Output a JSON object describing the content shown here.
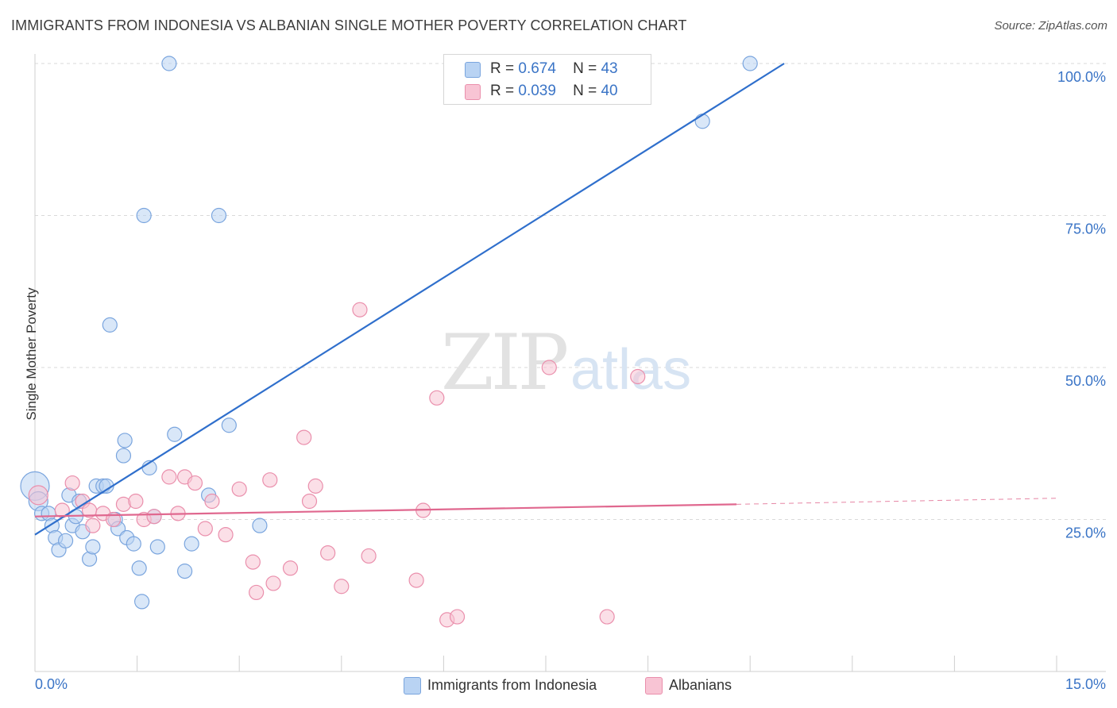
{
  "title": "IMMIGRANTS FROM INDONESIA VS ALBANIAN SINGLE MOTHER POVERTY CORRELATION CHART",
  "source": "Source: ZipAtlas.com",
  "watermark": {
    "zip": "ZIP",
    "atlas": "atlas"
  },
  "legend": {
    "rows": [
      {
        "r_label": "R =",
        "r_value": "0.674",
        "n_label": "N =",
        "n_value": "43"
      },
      {
        "r_label": "R =",
        "r_value": "0.039",
        "n_label": "N =",
        "n_value": "40"
      }
    ]
  },
  "bottom_legend": [
    "Immigrants from Indonesia",
    "Albanians"
  ],
  "colors": {
    "blue_fill": "#b9d3f3",
    "blue_stroke": "#7aa5de",
    "blue_line": "#2f6fcc",
    "pink_fill": "#f8c4d4",
    "pink_stroke": "#ea8fac",
    "pink_line": "#e0688f",
    "grid": "#d9d9d9",
    "tick_label": "#3a74c6"
  },
  "chart_data": {
    "type": "scatter",
    "title": "IMMIGRANTS FROM INDONESIA VS ALBANIAN SINGLE MOTHER POVERTY CORRELATION CHART",
    "xlabel": "",
    "ylabel": "Single Mother Poverty",
    "xlim": [
      0,
      15
    ],
    "ylim": [
      0,
      102
    ],
    "x_tick_labels": [
      "0.0%",
      "15.0%"
    ],
    "y_ticks": [
      25,
      50,
      75,
      100
    ],
    "y_tick_labels": [
      "25.0%",
      "50.0%",
      "75.0%",
      "100.0%"
    ],
    "series": [
      {
        "name": "Immigrants from Indonesia",
        "r": 0.674,
        "n": 43,
        "trend": {
          "x": [
            0,
            11.0
          ],
          "y": [
            22.5,
            100.0
          ]
        },
        "points": [
          [
            0.0,
            30.5,
            18
          ],
          [
            0.05,
            28.0,
            12
          ],
          [
            0.1,
            26.0,
            9
          ],
          [
            0.2,
            26.0,
            9
          ],
          [
            0.25,
            24.0,
            9
          ],
          [
            0.3,
            22.0,
            9
          ],
          [
            0.35,
            20.0,
            9
          ],
          [
            0.45,
            21.5,
            9
          ],
          [
            0.5,
            29.0,
            9
          ],
          [
            0.55,
            24.0,
            9
          ],
          [
            0.6,
            25.5,
            9
          ],
          [
            0.65,
            28.0,
            9
          ],
          [
            0.7,
            23.0,
            9
          ],
          [
            0.8,
            18.5,
            9
          ],
          [
            0.85,
            20.5,
            9
          ],
          [
            0.9,
            30.5,
            9
          ],
          [
            1.0,
            30.5,
            9
          ],
          [
            1.05,
            30.5,
            9
          ],
          [
            1.1,
            57.0,
            9
          ],
          [
            1.18,
            25.0,
            9
          ],
          [
            1.22,
            23.5,
            9
          ],
          [
            1.3,
            35.5,
            9
          ],
          [
            1.32,
            38.0,
            9
          ],
          [
            1.35,
            22.0,
            9
          ],
          [
            1.45,
            21.0,
            9
          ],
          [
            1.53,
            17.0,
            9
          ],
          [
            1.57,
            11.5,
            9
          ],
          [
            1.6,
            75.0,
            9
          ],
          [
            1.68,
            33.5,
            9
          ],
          [
            1.75,
            25.5,
            9
          ],
          [
            1.8,
            20.5,
            9
          ],
          [
            1.97,
            100.0,
            9
          ],
          [
            2.05,
            39.0,
            9
          ],
          [
            2.2,
            16.5,
            9
          ],
          [
            2.3,
            21.0,
            9
          ],
          [
            2.55,
            29.0,
            9
          ],
          [
            2.7,
            75.0,
            9
          ],
          [
            2.85,
            40.5,
            9
          ],
          [
            3.3,
            24.0,
            9
          ],
          [
            9.8,
            90.5,
            9
          ],
          [
            10.5,
            100.0,
            9
          ]
        ]
      },
      {
        "name": "Albanians",
        "r": 0.039,
        "n": 40,
        "trend": {
          "x": [
            0,
            10.3
          ],
          "y": [
            25.5,
            27.5
          ]
        },
        "trend_dashed_ext": {
          "x": [
            10.3,
            15.0
          ],
          "y": [
            27.5,
            28.5
          ]
        },
        "points": [
          [
            0.05,
            29.0,
            12
          ],
          [
            0.4,
            26.5,
            9
          ],
          [
            0.55,
            31.0,
            9
          ],
          [
            0.7,
            28.0,
            9
          ],
          [
            0.8,
            26.5,
            9
          ],
          [
            0.85,
            24.0,
            9
          ],
          [
            1.0,
            26.0,
            9
          ],
          [
            1.15,
            25.0,
            9
          ],
          [
            1.3,
            27.5,
            9
          ],
          [
            1.48,
            28.0,
            9
          ],
          [
            1.6,
            25.0,
            9
          ],
          [
            1.75,
            25.5,
            9
          ],
          [
            1.97,
            32.0,
            9
          ],
          [
            2.1,
            26.0,
            9
          ],
          [
            2.2,
            32.0,
            9
          ],
          [
            2.35,
            31.0,
            9
          ],
          [
            2.5,
            23.5,
            9
          ],
          [
            2.6,
            28.0,
            9
          ],
          [
            2.8,
            22.5,
            9
          ],
          [
            3.0,
            30.0,
            9
          ],
          [
            3.2,
            18.0,
            9
          ],
          [
            3.25,
            13.0,
            9
          ],
          [
            3.45,
            31.5,
            9
          ],
          [
            3.5,
            14.5,
            9
          ],
          [
            3.75,
            17.0,
            9
          ],
          [
            3.95,
            38.5,
            9
          ],
          [
            4.03,
            28.0,
            9
          ],
          [
            4.12,
            30.5,
            9
          ],
          [
            4.3,
            19.5,
            9
          ],
          [
            4.5,
            14.0,
            9
          ],
          [
            4.77,
            59.5,
            9
          ],
          [
            4.9,
            19.0,
            9
          ],
          [
            5.6,
            15.0,
            9
          ],
          [
            5.7,
            26.5,
            9
          ],
          [
            5.9,
            45.0,
            9
          ],
          [
            6.05,
            8.5,
            9
          ],
          [
            6.2,
            9.0,
            9
          ],
          [
            7.55,
            50.0,
            9
          ],
          [
            8.4,
            9.0,
            9
          ],
          [
            8.85,
            48.5,
            9
          ]
        ]
      }
    ]
  }
}
